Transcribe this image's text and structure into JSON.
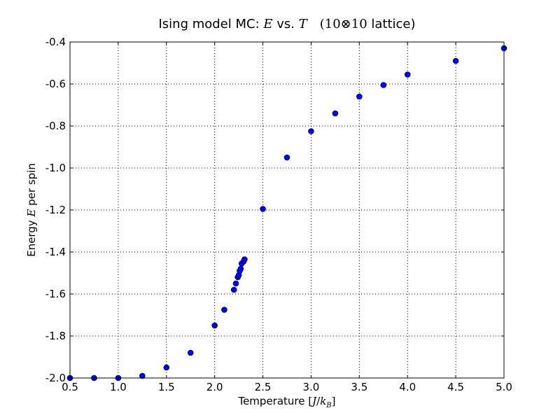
{
  "chart_data": {
    "type": "scatter",
    "title": {
      "prefix": "Ising model MC: ",
      "var_e": "E",
      "vs": " vs. ",
      "var_t": "T",
      "size": "(10⊗10",
      "lattice": " lattice)"
    },
    "xlabel": {
      "text": "Temperature  ",
      "lbr": "[",
      "j": "J",
      "slash": "/",
      "k": "k",
      "sub": "B",
      "rbr": "]"
    },
    "ylabel": {
      "prefix": "Energy ",
      "var": "E",
      "suffix": " per spin"
    },
    "xlim": [
      0.5,
      5.0
    ],
    "ylim": [
      -2.0,
      -0.4
    ],
    "xticks": [
      0.5,
      1.0,
      1.5,
      2.0,
      2.5,
      3.0,
      3.5,
      4.0,
      4.5,
      5.0
    ],
    "xtick_labels": [
      "0.5",
      "1.0",
      "1.5",
      "2.0",
      "2.5",
      "3.0",
      "3.5",
      "4.0",
      "4.5",
      "5.0"
    ],
    "yticks": [
      -2.0,
      -1.8,
      -1.6,
      -1.4,
      -1.2,
      -1.0,
      -0.8,
      -0.6,
      -0.4
    ],
    "ytick_labels": [
      "-2.0",
      "-1.8",
      "-1.6",
      "-1.4",
      "-1.2",
      "-1.0",
      "-0.8",
      "-0.6",
      "-0.4"
    ],
    "grid": true,
    "marker_color": "#0000ff",
    "marker_edge": "#000000",
    "points": [
      {
        "x": 0.5,
        "y": -2.0
      },
      {
        "x": 0.75,
        "y": -2.0
      },
      {
        "x": 1.0,
        "y": -2.0
      },
      {
        "x": 1.25,
        "y": -1.99
      },
      {
        "x": 1.5,
        "y": -1.95
      },
      {
        "x": 1.75,
        "y": -1.88
      },
      {
        "x": 2.0,
        "y": -1.75
      },
      {
        "x": 2.1,
        "y": -1.675
      },
      {
        "x": 2.2,
        "y": -1.58
      },
      {
        "x": 2.22,
        "y": -1.55
      },
      {
        "x": 2.24,
        "y": -1.52
      },
      {
        "x": 2.25,
        "y": -1.51
      },
      {
        "x": 2.26,
        "y": -1.49
      },
      {
        "x": 2.27,
        "y": -1.48
      },
      {
        "x": 2.28,
        "y": -1.455
      },
      {
        "x": 2.3,
        "y": -1.445
      },
      {
        "x": 2.31,
        "y": -1.435
      },
      {
        "x": 2.5,
        "y": -1.195
      },
      {
        "x": 2.75,
        "y": -0.95
      },
      {
        "x": 3.0,
        "y": -0.825
      },
      {
        "x": 3.25,
        "y": -0.74
      },
      {
        "x": 3.5,
        "y": -0.66
      },
      {
        "x": 3.75,
        "y": -0.605
      },
      {
        "x": 4.0,
        "y": -0.555
      },
      {
        "x": 4.5,
        "y": -0.49
      },
      {
        "x": 5.0,
        "y": -0.43
      }
    ]
  }
}
